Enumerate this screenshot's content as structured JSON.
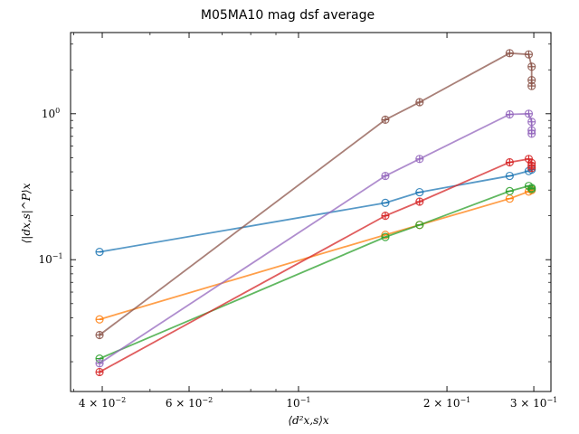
{
  "chart_data": {
    "type": "line",
    "title": "M05MA10 mag dsf average",
    "xlabel": "⟨d²x,s⟩x",
    "ylabel": "⟨|dx,s|^P⟩x",
    "xscale": "log",
    "yscale": "log",
    "xlim": [
      0.0345,
      0.325
    ],
    "ylim": [
      0.0125,
      3.6
    ],
    "grid": false,
    "legend": "none",
    "x_ticks": [
      {
        "value": 0.04,
        "base": "4 × 10",
        "exp": "−2"
      },
      {
        "value": 0.06,
        "base": "6 × 10",
        "exp": "−2"
      },
      {
        "value": 0.1,
        "base": "10",
        "exp": "−1"
      },
      {
        "value": 0.2,
        "base": "2 × 10",
        "exp": "−1"
      },
      {
        "value": 0.3,
        "base": "3 × 10",
        "exp": "−1"
      }
    ],
    "y_ticks": [
      {
        "value": 0.1,
        "base": "10",
        "exp": "−1"
      },
      {
        "value": 1.0,
        "base": "10",
        "exp": "0"
      }
    ],
    "series": [
      {
        "color": "#1f77b4",
        "marker": "o",
        "x": [
          0.0395,
          0.15,
          0.176,
          0.268,
          0.293,
          0.297
        ],
        "y": [
          0.113,
          0.245,
          0.29,
          0.375,
          0.405,
          0.415
        ]
      },
      {
        "color": "#ff7f0e",
        "marker": "o",
        "x": [
          0.0395,
          0.15,
          0.176,
          0.268,
          0.293,
          0.297
        ],
        "y": [
          0.039,
          0.148,
          0.173,
          0.262,
          0.293,
          0.3
        ]
      },
      {
        "color": "#2ca02c",
        "marker": "o",
        "x": [
          0.0395,
          0.15,
          0.176,
          0.268,
          0.293,
          0.297,
          0.297
        ],
        "y": [
          0.021,
          0.143,
          0.173,
          0.295,
          0.32,
          0.31,
          0.305
        ]
      },
      {
        "color": "#d62728",
        "marker": "+",
        "x": [
          0.0395,
          0.15,
          0.176,
          0.268,
          0.293,
          0.297,
          0.297,
          0.297
        ],
        "y": [
          0.017,
          0.2,
          0.25,
          0.465,
          0.49,
          0.46,
          0.44,
          0.425
        ]
      },
      {
        "color": "#9467bd",
        "marker": "+",
        "x": [
          0.0395,
          0.15,
          0.176,
          0.268,
          0.293,
          0.297,
          0.297,
          0.297
        ],
        "y": [
          0.0195,
          0.375,
          0.49,
          0.99,
          1.0,
          0.88,
          0.77,
          0.73
        ]
      },
      {
        "color": "#8c564b",
        "marker": "+",
        "x": [
          0.0395,
          0.15,
          0.176,
          0.268,
          0.293,
          0.297,
          0.297,
          0.297
        ],
        "y": [
          0.0305,
          0.91,
          1.2,
          2.6,
          2.55,
          2.1,
          1.7,
          1.55
        ]
      }
    ]
  }
}
